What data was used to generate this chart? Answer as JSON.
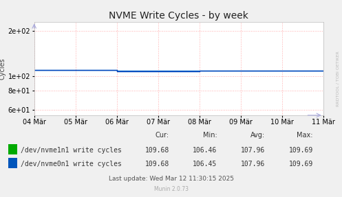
{
  "title": "NVME Write Cycles - by week",
  "ylabel": "Cycles",
  "bg_color": "#f0f0f0",
  "plot_bg_color": "#ffffff",
  "grid_color": "#ffaaaa",
  "grid_style": ":",
  "x_start": 0,
  "x_end": 604800,
  "ylim_bottom": 55,
  "ylim_top": 230,
  "yticks": [
    60,
    80,
    100,
    200
  ],
  "xtick_labels": [
    "04 Mär",
    "05 Mär",
    "06 Mär",
    "07 Mär",
    "08 Mär",
    "09 Mär",
    "10 Mär",
    "11 Mär"
  ],
  "xtick_positions": [
    0,
    86400,
    172800,
    259200,
    345600,
    432000,
    518400,
    604800
  ],
  "series": [
    {
      "label": "/dev/nvme1n1 write cycles",
      "color": "#00aa00",
      "line_color": "#0066cc",
      "values_x": [
        0,
        86400,
        172800,
        172800,
        259200,
        345600,
        345600,
        432000,
        518400,
        518400,
        604800
      ],
      "values_y": [
        109.5,
        109.5,
        109.5,
        108.2,
        108.2,
        108.2,
        108.7,
        108.7,
        108.7,
        109.2,
        109.2
      ]
    },
    {
      "label": "/dev/nvme0n1 write cycles",
      "color": "#0055bb",
      "line_color": "#0044bb",
      "values_x": [
        0,
        86400,
        172800,
        172800,
        259200,
        345600,
        345600,
        432000,
        518400,
        518400,
        604800
      ],
      "values_y": [
        109.4,
        109.4,
        109.4,
        108.1,
        108.1,
        108.1,
        108.6,
        108.6,
        108.6,
        109.1,
        109.1
      ]
    }
  ],
  "legend_data": [
    {
      "label": "/dev/nvme1n1 write cycles",
      "color": "#00aa00",
      "cur": "109.68",
      "min": "106.46",
      "avg": "107.96",
      "max": "109.69"
    },
    {
      "label": "/dev/nvme0n1 write cycles",
      "color": "#0055bb",
      "cur": "109.68",
      "min": "106.45",
      "avg": "107.96",
      "max": "109.69"
    }
  ],
  "last_update": "Last update: Wed Mar 12 11:30:15 2025",
  "munin_version": "Munin 2.0.73",
  "watermark": "RRDTOOL / TOBI OETIKER",
  "title_fontsize": 10,
  "axis_fontsize": 7,
  "legend_fontsize": 7
}
